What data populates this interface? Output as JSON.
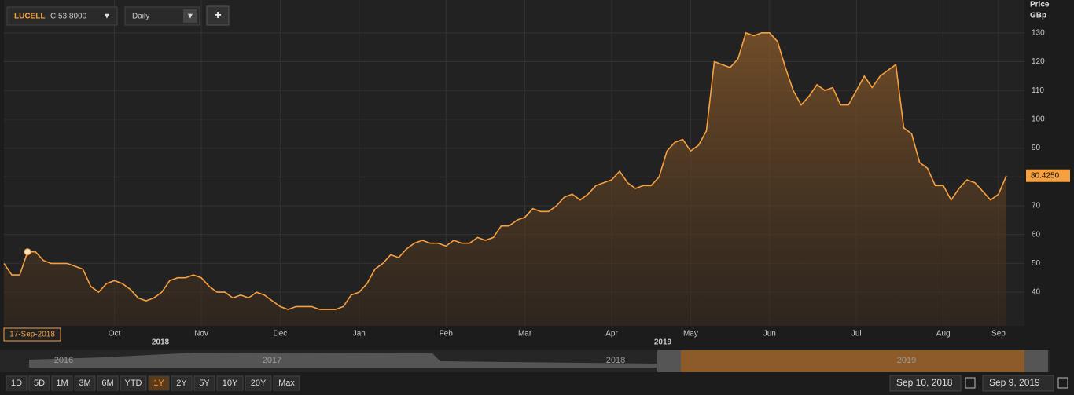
{
  "toolbar": {
    "symbol": "LUCELL",
    "close": "C 53.8000",
    "interval": "Daily",
    "add": "+"
  },
  "chart_data": {
    "type": "line",
    "y_axis_label": "Price",
    "y_axis_unit": "GBp",
    "categories": [
      null,
      null,
      null,
      null,
      null,
      null,
      null,
      null,
      null,
      null,
      null,
      null,
      null,
      null,
      "Oct",
      null,
      null,
      null,
      null,
      null,
      null,
      null,
      null,
      null,
      null,
      "Nov",
      null,
      null,
      null,
      null,
      null,
      null,
      null,
      null,
      null,
      "Dec",
      null,
      null,
      null,
      null,
      null,
      null,
      null,
      null,
      null,
      "Jan",
      null,
      null,
      null,
      null,
      null,
      null,
      null,
      null,
      null,
      null,
      "Feb",
      null,
      null,
      null,
      null,
      null,
      null,
      null,
      null,
      null,
      "Mar",
      null,
      null,
      null,
      null,
      null,
      null,
      null,
      null,
      null,
      null,
      "Apr",
      null,
      null,
      null,
      null,
      null,
      null,
      null,
      null,
      null,
      "May",
      null,
      null,
      null,
      null,
      null,
      null,
      null,
      null,
      null,
      "Jun",
      null,
      null,
      null,
      null,
      null,
      null,
      null,
      null,
      null,
      null,
      "Jul",
      null,
      null,
      null,
      null,
      null,
      null,
      null,
      null,
      null,
      null,
      "Aug",
      null,
      null,
      null,
      null,
      null,
      null,
      "Sep",
      null
    ],
    "year_labels": [
      "2018",
      "2019"
    ],
    "series": [
      {
        "name": "LUCELL",
        "color": "#f7a040",
        "values": [
          50,
          46,
          46,
          54,
          54,
          51,
          50,
          50,
          50,
          49,
          48,
          42,
          40,
          43,
          44,
          43,
          41,
          38,
          37,
          38,
          40,
          44,
          45,
          45,
          46,
          45,
          42,
          40,
          40,
          38,
          39,
          38,
          40,
          39,
          37,
          35,
          34,
          35,
          35,
          35,
          34,
          34,
          34,
          35,
          39,
          40,
          43,
          48,
          50,
          53,
          52,
          55,
          57,
          58,
          57,
          57,
          56,
          58,
          57,
          57,
          59,
          58,
          59,
          63,
          63,
          65,
          66,
          69,
          68,
          68,
          70,
          73,
          74,
          72,
          74,
          77,
          78,
          79,
          82,
          78,
          76,
          77,
          77,
          80,
          89,
          92,
          93,
          89,
          91,
          96,
          120,
          119,
          118,
          121,
          130,
          129,
          130,
          130,
          127,
          118,
          110,
          105,
          108,
          112,
          110,
          111,
          105,
          105,
          110,
          115,
          111,
          115,
          117,
          119,
          97,
          95,
          85,
          83,
          77,
          77,
          72,
          76,
          79,
          78,
          75,
          72,
          74,
          80.425
        ]
      }
    ],
    "last_value_label": "80.4250",
    "highlight_date": "17-Sep-2018",
    "ylim": [
      28.3,
      141.4
    ],
    "yticks": [
      40,
      50,
      60,
      70,
      80,
      90,
      100,
      110,
      120,
      130
    ],
    "grid": true
  },
  "navigator": {
    "labels": [
      "2016",
      "2017",
      "2018",
      "2019"
    ]
  },
  "range_buttons": [
    "1D",
    "5D",
    "1M",
    "3M",
    "6M",
    "YTD",
    "1Y",
    "2Y",
    "5Y",
    "10Y",
    "20Y",
    "Max"
  ],
  "date_range": {
    "from": "Sep 10, 2018",
    "to": "Sep 9, 2019"
  }
}
